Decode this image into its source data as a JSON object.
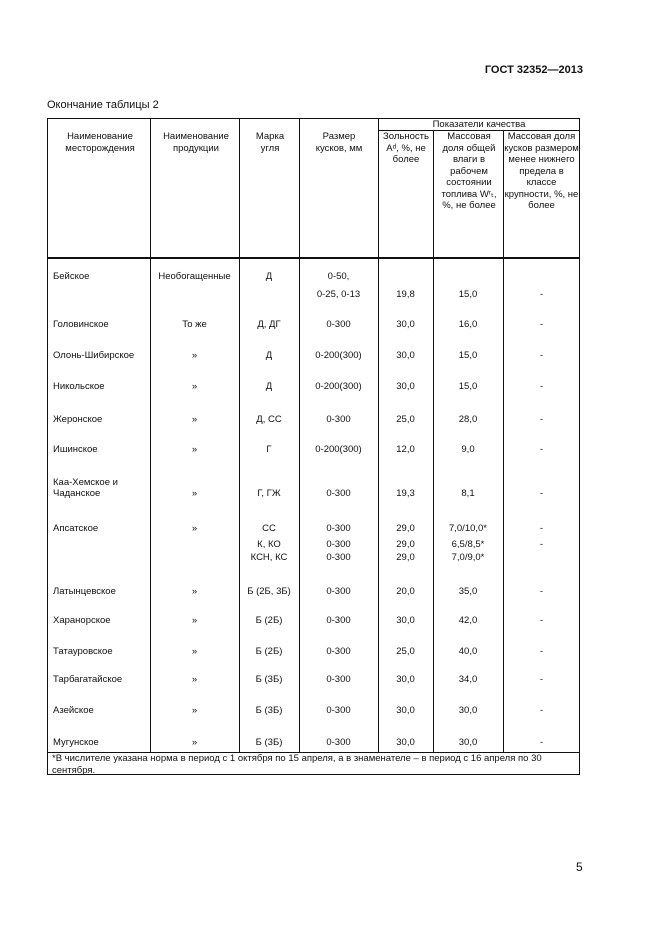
{
  "header": {
    "standard": "ГОСТ 32352—2013"
  },
  "caption": "Окончание таблицы 2",
  "columns": {
    "deposit": "Наименование месторождения",
    "product": "Наименование продукции",
    "grade": "Марка угля",
    "size": "Размер кусков, мм",
    "quality_group": "Показатели качества",
    "ash": "Зольность Aᵈ, %, не более",
    "moisture": "Массовая доля общей влаги в рабочем состоянии топлива Wʳₜ, %, не более",
    "fines": "Массовая доля кусков размером менее нижнего предела в классе крупности, %, не более"
  },
  "rows": [
    {
      "deposit": "Бейское",
      "product": "Необогащенные",
      "grade": "Д",
      "size": "0-50,",
      "size2": "0-25, 0-13",
      "ash": "19,8",
      "moisture": "15,0",
      "fines": "-"
    },
    {
      "deposit": "Головинское",
      "product": "То же",
      "grade": "Д, ДГ",
      "size": "0-300",
      "ash": "30,0",
      "moisture": "16,0",
      "fines": "-"
    },
    {
      "deposit": "Олонь-Шибирское",
      "product": "»",
      "grade": "Д",
      "size": "0-200(300)",
      "ash": "30,0",
      "moisture": "15,0",
      "fines": "-"
    },
    {
      "deposit": "Никольское",
      "product": "»",
      "grade": "Д",
      "size": "0-200(300)",
      "ash": "30,0",
      "moisture": "15,0",
      "fines": "-"
    },
    {
      "deposit": "Жеронское",
      "product": "»",
      "grade": "Д, СС",
      "size": "0-300",
      "ash": "25,0",
      "moisture": "28,0",
      "fines": "-"
    },
    {
      "deposit": "Ишинское",
      "product": "»",
      "grade": "Г",
      "size": "0-200(300)",
      "ash": "12,0",
      "moisture": "9,0",
      "fines": "-"
    },
    {
      "deposit": "Каа-Хемское и",
      "deposit2": "Чаданское",
      "product": "»",
      "grade": "Г, ГЖ",
      "size": "0-300",
      "ash": "19,3",
      "moisture": "8,1",
      "fines": "-"
    },
    {
      "deposit": "Апсатское",
      "product": "»",
      "grade": "СС",
      "size": "0-300",
      "ash": "29,0",
      "moisture": "7,0/10,0*",
      "fines": "-"
    },
    {
      "grade": "К, КО",
      "size": "0-300",
      "ash": "29,0",
      "moisture": "6,5/8,5*",
      "fines": "-"
    },
    {
      "grade": "КСН, КС",
      "size": "0-300",
      "ash": "29,0",
      "moisture": "7,0/9,0*"
    },
    {
      "deposit": "Латынцевское",
      "product": "»",
      "grade": "Б (2Б, 3Б)",
      "size": "0-300",
      "ash": "20,0",
      "moisture": "35,0",
      "fines": "-"
    },
    {
      "deposit": "Харанорское",
      "product": "»",
      "grade": "Б (2Б)",
      "size": "0-300",
      "ash": "30,0",
      "moisture": "42,0",
      "fines": "-"
    },
    {
      "deposit": "Татауровское",
      "product": "»",
      "grade": "Б (2Б)",
      "size": "0-300",
      "ash": "25,0",
      "moisture": "40,0",
      "fines": "-"
    },
    {
      "deposit": "Тарбагатайское",
      "product": "»",
      "grade": "Б (3Б)",
      "size": "0-300",
      "ash": "30,0",
      "moisture": "34,0",
      "fines": "-"
    },
    {
      "deposit": "Азейское",
      "product": "»",
      "grade": "Б (3Б)",
      "size": "0-300",
      "ash": "30,0",
      "moisture": "30,0",
      "fines": "-"
    },
    {
      "deposit": "Мугунское",
      "product": "»",
      "grade": "Б (3Б)",
      "size": "0-300",
      "ash": "30,0",
      "moisture": "30,0",
      "fines": "-"
    }
  ],
  "footnote": "*В числителе указана норма в период с 1 октября по 15 апреля, а в знаменателе – в период с 16 апреля по 30 сентября.",
  "page_number": "5"
}
